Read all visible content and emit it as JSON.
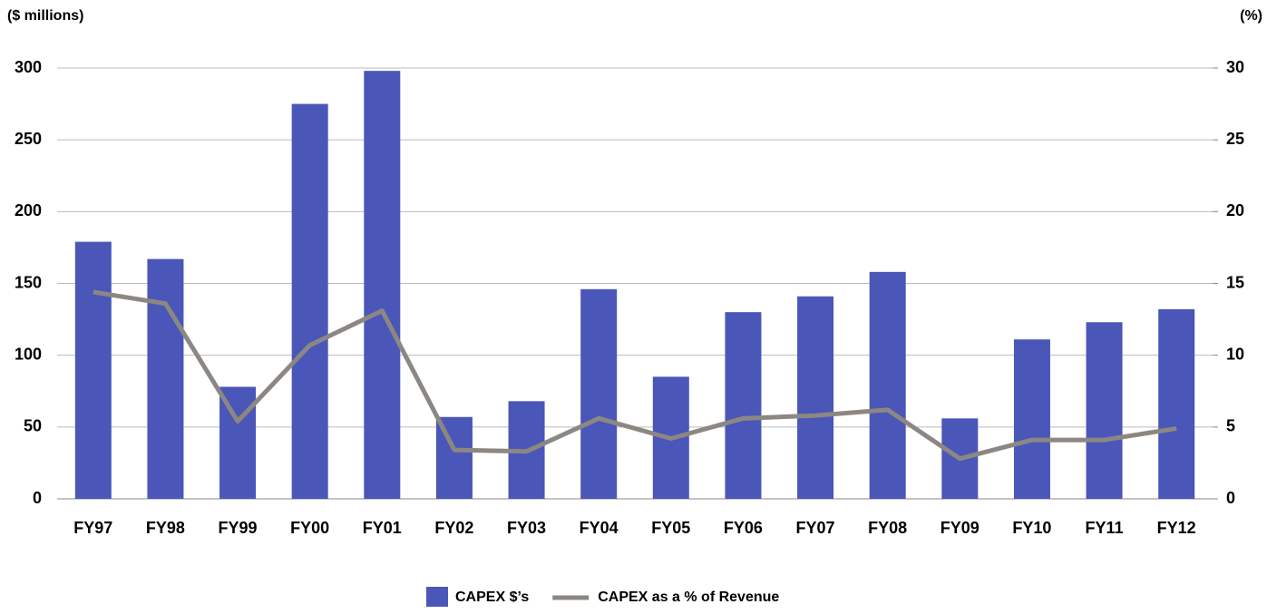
{
  "chart_data": {
    "type": "bar-line",
    "y_label": "($ millions)",
    "y2_label": "(%)",
    "categories": [
      "FY97",
      "FY98",
      "FY99",
      "FY00",
      "FY01",
      "FY02",
      "FY03",
      "FY04",
      "FY05",
      "FY06",
      "FY07",
      "FY08",
      "FY09",
      "FY10",
      "FY11",
      "FY12"
    ],
    "series": [
      {
        "name": "CAPEX $’s",
        "type": "bar",
        "color": "#4a56b8",
        "values": [
          179,
          167,
          78,
          275,
          298,
          57,
          68,
          146,
          85,
          130,
          141,
          158,
          56,
          111,
          123,
          132
        ]
      },
      {
        "name": "CAPEX as a % of Revenue",
        "type": "line",
        "axis": "y2",
        "color": "#8c8782",
        "values": [
          14.4,
          13.6,
          5.4,
          10.7,
          13.1,
          3.4,
          3.3,
          5.6,
          4.2,
          5.6,
          5.8,
          6.2,
          2.8,
          4.1,
          4.1,
          4.9
        ]
      }
    ],
    "ylim": [
      0,
      300
    ],
    "yticks": [
      0,
      50,
      100,
      150,
      200,
      250,
      300
    ],
    "y2lim": [
      0,
      30
    ],
    "y2ticks": [
      0,
      5,
      10,
      15,
      20,
      25,
      30
    ],
    "grid": true,
    "legend": "bottom"
  }
}
